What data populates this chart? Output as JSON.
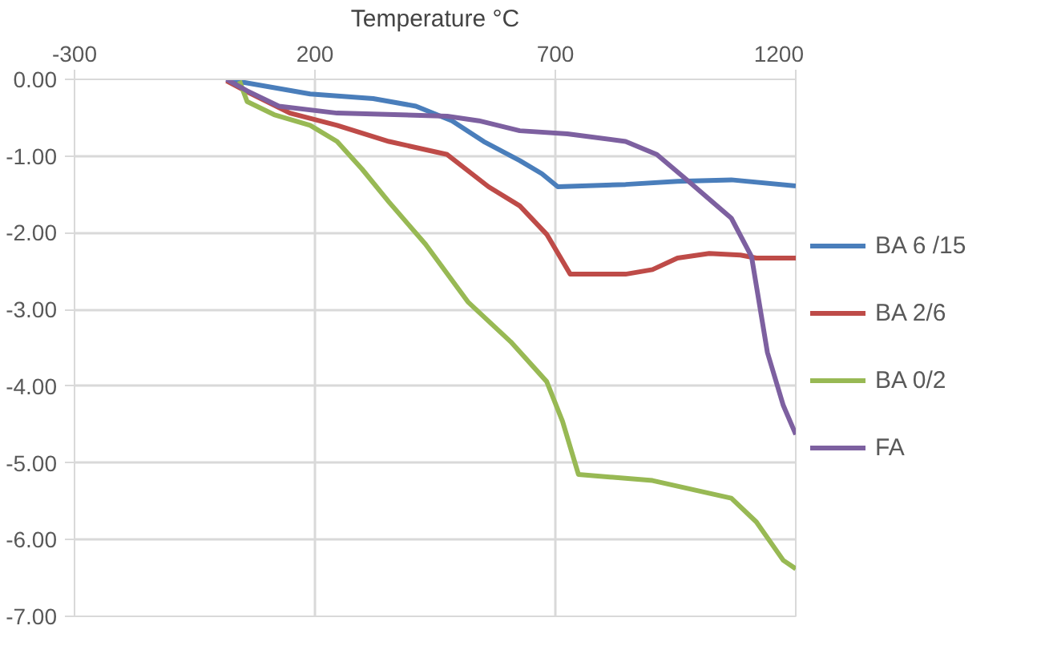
{
  "chart_data": {
    "type": "line",
    "xlabel": "Temperature °C",
    "xlim": [
      -300,
      1200
    ],
    "xticks": [
      -300,
      200,
      700,
      1200
    ],
    "ylim": [
      -7,
      0
    ],
    "yticks": [
      {
        "value": 0,
        "label": "0.00"
      },
      {
        "value": -1,
        "label": "-1.00"
      },
      {
        "value": -2,
        "label": "-2.00"
      },
      {
        "value": -3,
        "label": "-3.00"
      },
      {
        "value": -4,
        "label": "-4.00"
      },
      {
        "value": -5,
        "label": "-5.00"
      },
      {
        "value": -6,
        "label": "-6.00"
      },
      {
        "value": -7,
        "label": "-7.00"
      }
    ],
    "grid": true,
    "legend": "right",
    "marker": "none",
    "line_style": "solid",
    "series": [
      {
        "name": "BA 6 /15",
        "color": "#4a7ebb",
        "x": [
          16,
          190,
          321,
          410,
          485,
          551,
          626,
          672,
          705,
          846,
          954,
          1066,
          1200
        ],
        "values": [
          0,
          -0.19,
          -0.25,
          -0.35,
          -0.54,
          -0.81,
          -1.06,
          -1.23,
          -1.4,
          -1.37,
          -1.33,
          -1.31,
          -1.39
        ]
      },
      {
        "name": "BA 2/6",
        "color": "#be4b48",
        "x": [
          16,
          49,
          148,
          246,
          354,
          475,
          561,
          626,
          682,
          731,
          846,
          902,
          954,
          1020,
          1085,
          1118,
          1200
        ],
        "values": [
          -0.02,
          -0.13,
          -0.44,
          -0.6,
          -0.81,
          -0.98,
          -1.4,
          -1.65,
          -2.02,
          -2.54,
          -2.54,
          -2.48,
          -2.33,
          -2.27,
          -2.29,
          -2.33,
          -2.33
        ]
      },
      {
        "name": "BA 0/2",
        "color": "#98b954",
        "x": [
          43,
          59,
          115,
          190,
          246,
          298,
          354,
          430,
          518,
          607,
          682,
          715,
          748,
          902,
          1066,
          1118,
          1174,
          1200
        ],
        "values": [
          -0.02,
          -0.29,
          -0.46,
          -0.6,
          -0.81,
          -1.17,
          -1.6,
          -2.15,
          -2.9,
          -3.42,
          -3.94,
          -4.46,
          -5.15,
          -5.23,
          -5.46,
          -5.77,
          -6.27,
          -6.38
        ]
      },
      {
        "name": "FA",
        "color": "#7d60a0",
        "x": [
          16,
          59,
          125,
          246,
          475,
          541,
          626,
          725,
          846,
          911,
          977,
          1066,
          1108,
          1141,
          1174,
          1200
        ],
        "values": [
          0,
          -0.15,
          -0.35,
          -0.44,
          -0.48,
          -0.54,
          -0.67,
          -0.71,
          -0.81,
          -0.98,
          -1.33,
          -1.81,
          -2.31,
          -3.56,
          -4.25,
          -4.63
        ]
      }
    ]
  }
}
